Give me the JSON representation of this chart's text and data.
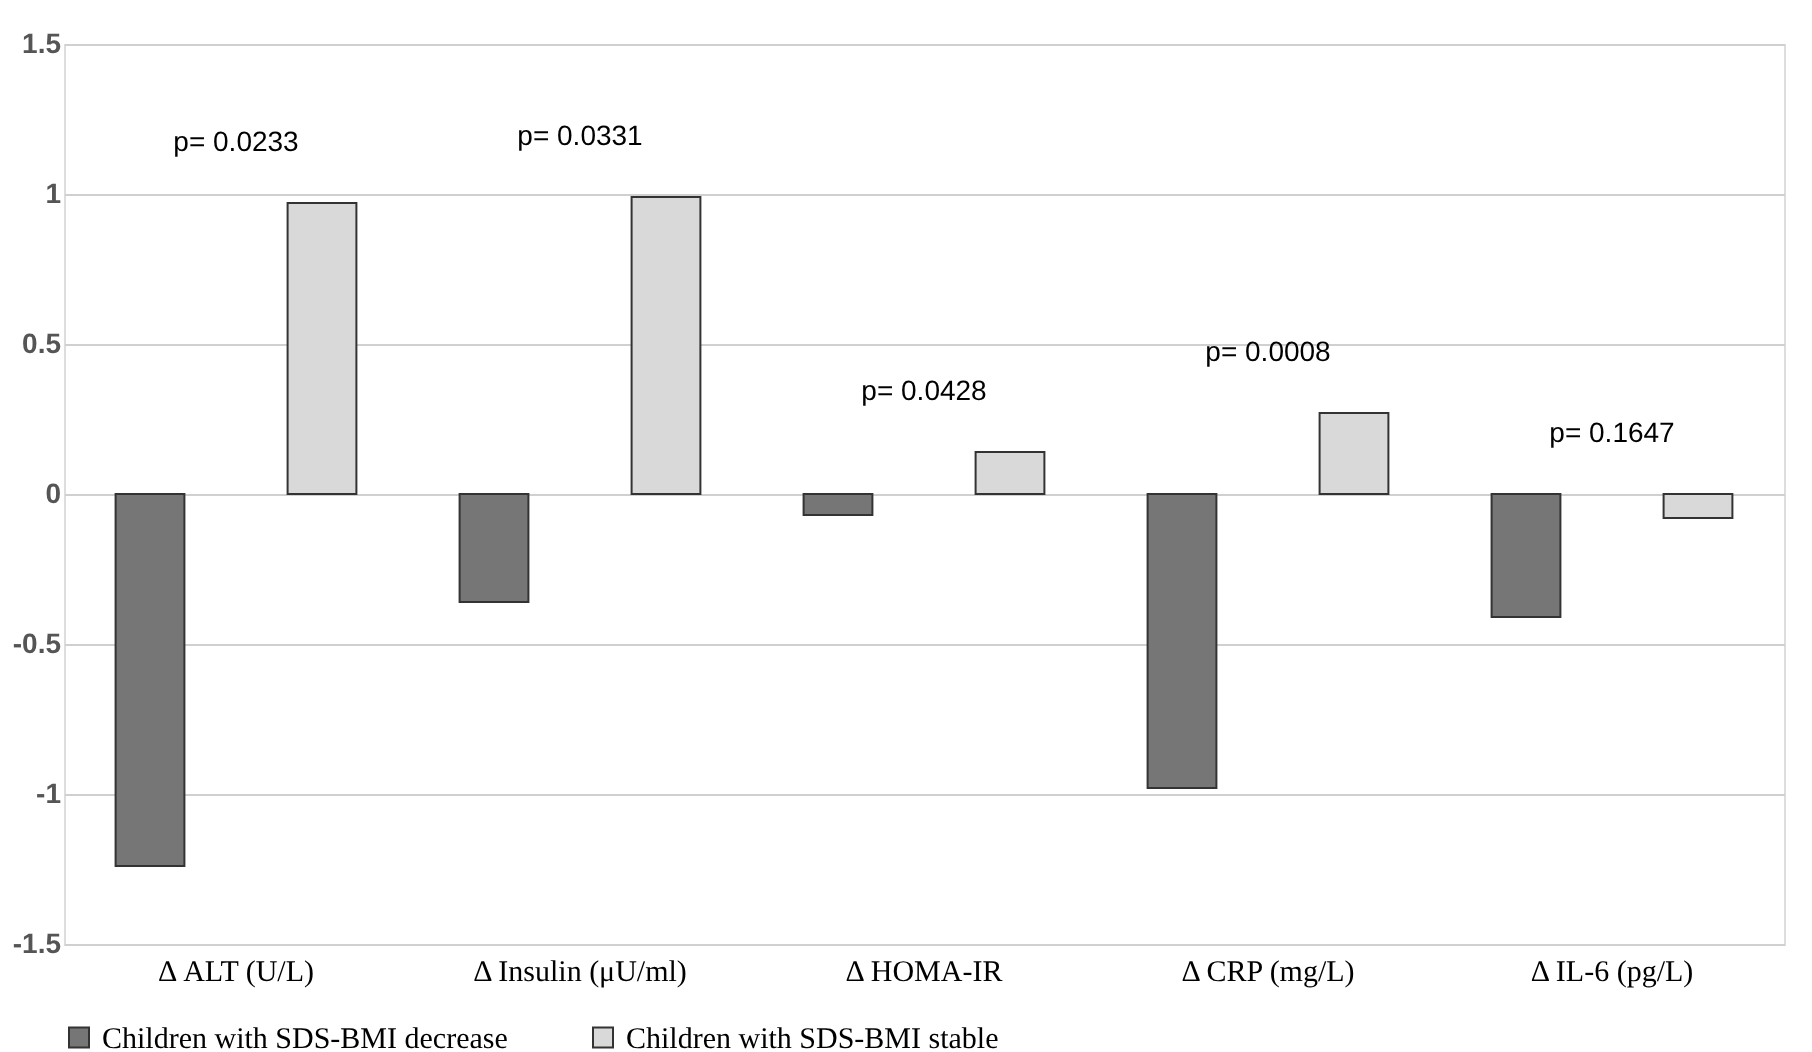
{
  "chart_data": {
    "type": "bar",
    "categories": [
      "Δ ALT (U/L)",
      "Δ Insulin (μU/ml)",
      "Δ HOMA-IR",
      "Δ CRP (mg/L)",
      "Δ IL-6 (pg/L)"
    ],
    "series": [
      {
        "name": "Children with SDS-BMI decrease",
        "color": "#767676",
        "values": [
          -1.24,
          -0.36,
          -0.07,
          -0.98,
          -0.41
        ]
      },
      {
        "name": "Children with SDS-BMI stable",
        "color": "#d9d9d9",
        "values": [
          0.97,
          0.99,
          0.14,
          0.27,
          -0.08
        ]
      }
    ],
    "ylim": [
      -1.5,
      1.5
    ],
    "yticks": [
      -1.5,
      -1,
      -0.5,
      0,
      0.5,
      1,
      1.5
    ],
    "grid": "y",
    "legend": "bottom",
    "annotations": [
      "p= 0.0233",
      "p= 0.0331",
      "p= 0.0428",
      "p= 0.0008",
      "p= 0.1647"
    ]
  }
}
